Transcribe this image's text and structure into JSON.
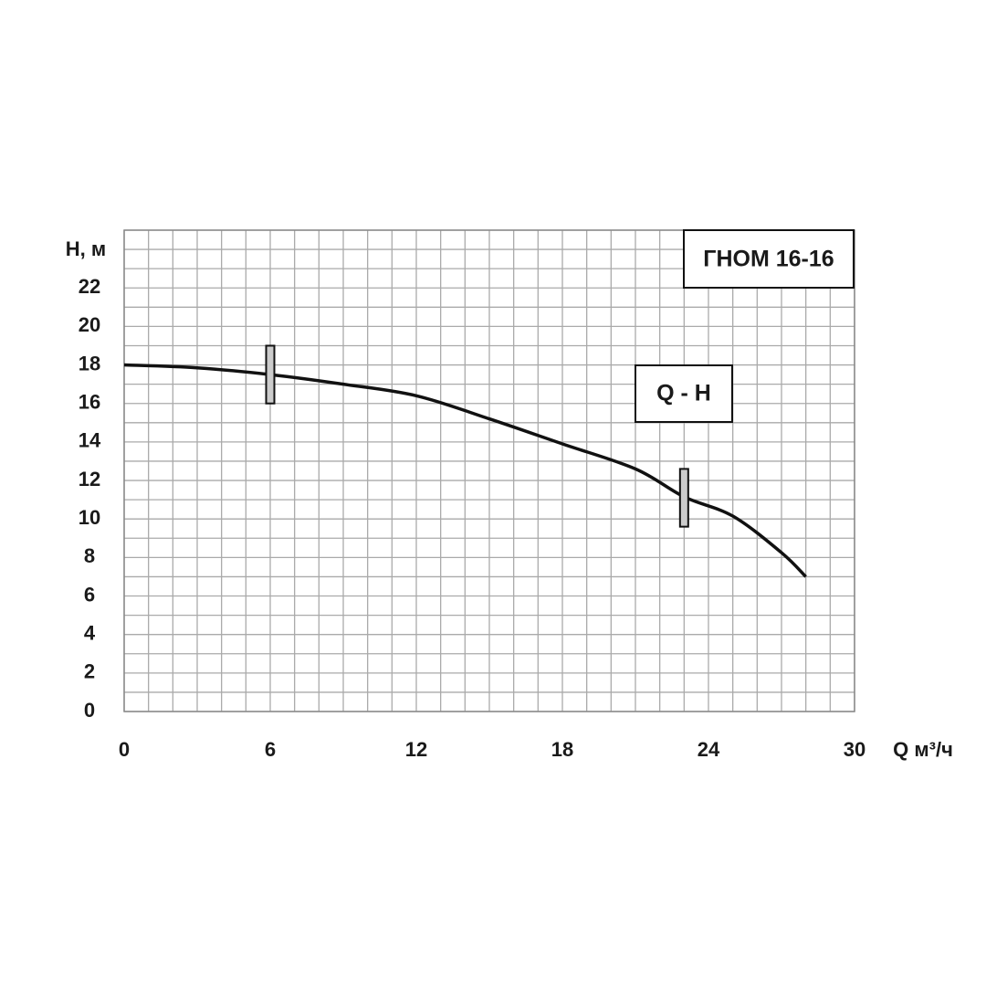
{
  "chart_data": {
    "type": "line",
    "title": "ГНОМ 16-16",
    "annotation": "Q - H",
    "y_label": "H, м",
    "x_label": "Q м³/ч",
    "x": [
      0,
      3,
      6,
      9,
      12,
      15,
      18,
      21,
      23,
      25,
      27,
      28
    ],
    "series": [
      {
        "name": "Q - H",
        "color": "#111111",
        "values": [
          18,
          17.85,
          17.5,
          17.0,
          16.4,
          15.2,
          13.9,
          12.6,
          11.15,
          10.15,
          8.25,
          7.0
        ]
      }
    ],
    "range_markers": [
      {
        "x": 6,
        "low": 16,
        "high": 19
      },
      {
        "x": 23,
        "low": 9.6,
        "high": 12.6
      }
    ],
    "marker_color": "#cccccc",
    "xlim": [
      0,
      30
    ],
    "ylim": [
      0,
      25
    ],
    "xticks": [
      0,
      6,
      12,
      18,
      24,
      30
    ],
    "yticks": [
      0,
      2,
      4,
      6,
      8,
      10,
      12,
      14,
      16,
      18,
      20,
      22
    ],
    "xgrid": [
      0,
      1,
      2,
      3,
      4,
      5,
      6,
      7,
      8,
      9,
      10,
      11,
      12,
      13,
      14,
      15,
      16,
      17,
      18,
      19,
      20,
      21,
      22,
      23,
      24,
      25,
      26,
      27,
      28,
      29,
      30
    ],
    "ygrid": [
      0,
      1,
      2,
      3,
      4,
      5,
      6,
      7,
      8,
      9,
      10,
      11,
      12,
      13,
      14,
      15,
      16,
      17,
      18,
      19,
      20,
      21,
      22,
      23,
      24,
      25
    ],
    "grid": true
  }
}
